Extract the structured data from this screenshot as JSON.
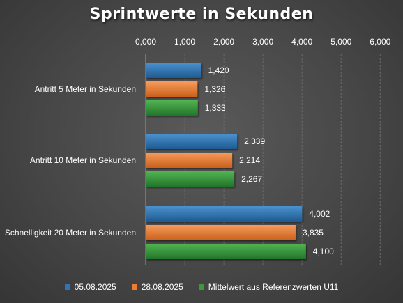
{
  "chart_data": {
    "type": "bar",
    "orientation": "horizontal",
    "title": "Sprintwerte in Sekunden",
    "xlabel": "",
    "ylabel": "",
    "xlim": [
      0,
      6
    ],
    "x_ticks": [
      "0,000",
      "1,000",
      "2,000",
      "3,000",
      "4,000",
      "5,000",
      "6,000"
    ],
    "x_axis_position": "top",
    "grid": true,
    "legend_position": "bottom",
    "categories": [
      "Antritt 5 Meter in Sekunden",
      "Antritt 10 Meter in Sekunden",
      "Schnelligkeit 20 Meter in Sekunden"
    ],
    "series": [
      {
        "name": "05.08.2025",
        "color": "#2e75b6",
        "values": [
          1.42,
          2.339,
          4.002
        ],
        "labels": [
          "1,420",
          "2,339",
          "4,002"
        ]
      },
      {
        "name": "28.08.2025",
        "color": "#ed7d31",
        "values": [
          1.326,
          2.214,
          3.835
        ],
        "labels": [
          "1,326",
          "2,214",
          "3,835"
        ]
      },
      {
        "name": "Mittelwert aus Referenzwerten U11",
        "color": "#3a9a3a",
        "values": [
          1.333,
          2.267,
          4.1
        ],
        "labels": [
          "1,333",
          "2,267",
          "4,100"
        ]
      }
    ]
  }
}
